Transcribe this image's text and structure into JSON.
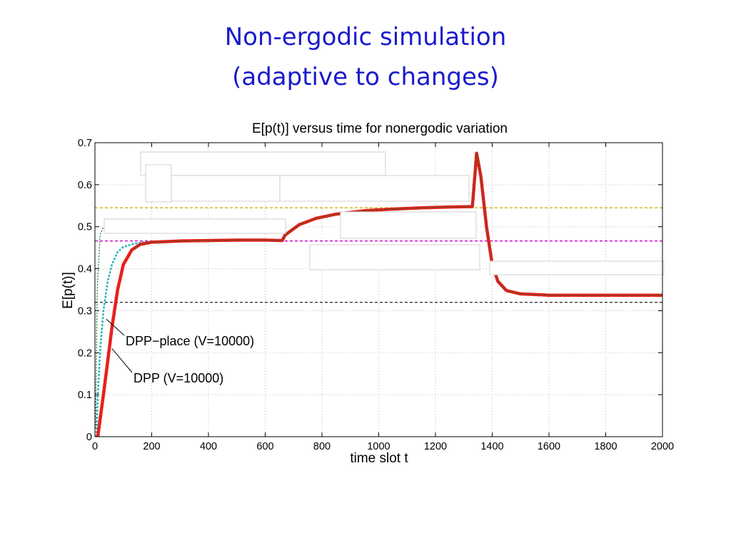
{
  "slide": {
    "title_line1": "Non-ergodic simulation",
    "title_line2": "(adaptive to changes)"
  },
  "chart_data": {
    "type": "line",
    "title": "E[p(t)] versus time for nonergodic variation",
    "xlabel": "time slot t",
    "ylabel": "E[p(t)]",
    "xlim": [
      0,
      2000
    ],
    "ylim": [
      0,
      0.7
    ],
    "x_ticks": [
      "0",
      "200",
      "400",
      "600",
      "800",
      "1000",
      "1200",
      "1400",
      "1600",
      "1800",
      "2000"
    ],
    "y_ticks": [
      "0",
      "0.1",
      "0.2",
      "0.3",
      "0.4",
      "0.5",
      "0.6",
      "0.7"
    ],
    "grid": true,
    "reference_lines": [
      {
        "y": 0.545,
        "color": "#c8b400"
      },
      {
        "y": 0.466,
        "color": "#cc00cc"
      },
      {
        "y": 0.32,
        "color": "#333333"
      }
    ],
    "series": [
      {
        "name": "DPP (V=10000)",
        "color": "#e8201c",
        "x": [
          10,
          20,
          30,
          45,
          60,
          80,
          100,
          130,
          160,
          200,
          300,
          400,
          500,
          600,
          660,
          670,
          690,
          720,
          780,
          850,
          950,
          1050,
          1150,
          1250,
          1330,
          1340,
          1345,
          1360,
          1380,
          1400,
          1420,
          1450,
          1500,
          1600,
          1800,
          2000
        ],
        "y": [
          0.0,
          0.05,
          0.1,
          0.18,
          0.26,
          0.35,
          0.41,
          0.445,
          0.458,
          0.463,
          0.466,
          0.467,
          0.468,
          0.468,
          0.467,
          0.48,
          0.49,
          0.505,
          0.52,
          0.53,
          0.538,
          0.542,
          0.545,
          0.547,
          0.548,
          0.63,
          0.675,
          0.62,
          0.5,
          0.41,
          0.37,
          0.348,
          0.34,
          0.337,
          0.337,
          0.337
        ]
      },
      {
        "name": "DPP-place (V=10000)",
        "color": "#1fb4b4",
        "x": [
          5,
          10,
          20,
          30,
          45,
          60,
          80,
          100,
          130,
          160,
          200,
          300,
          400,
          500,
          600,
          660,
          670,
          690,
          720,
          780,
          850,
          950,
          1050,
          1150,
          1250,
          1330,
          1340,
          1345,
          1360,
          1380,
          1400,
          1420,
          1450,
          1500,
          1600,
          1800,
          2000
        ],
        "y": [
          0.0,
          0.1,
          0.22,
          0.3,
          0.37,
          0.41,
          0.44,
          0.452,
          0.458,
          0.462,
          0.465,
          0.467,
          0.468,
          0.468,
          0.468,
          0.467,
          0.48,
          0.49,
          0.505,
          0.52,
          0.53,
          0.538,
          0.542,
          0.545,
          0.547,
          0.548,
          0.63,
          0.675,
          0.62,
          0.5,
          0.41,
          0.37,
          0.348,
          0.34,
          0.337,
          0.337,
          0.337
        ]
      }
    ],
    "annotations": [
      {
        "text": "DPP−place (V=10000)",
        "target_x": 40,
        "target_y": 0.28
      },
      {
        "text": "DPP (V=10000)",
        "target_x": 60,
        "target_y": 0.21
      }
    ]
  }
}
